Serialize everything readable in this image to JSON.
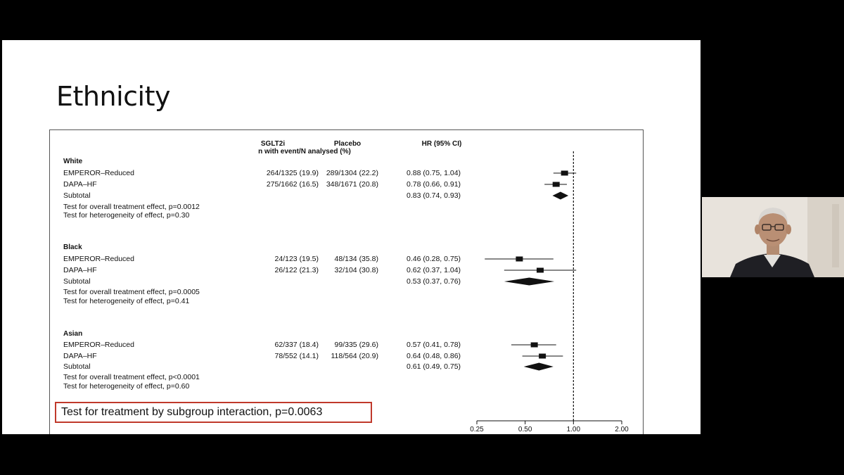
{
  "slide": {
    "title": "Ethnicity"
  },
  "figure": {
    "headers": {
      "sglt2i": "SGLT2i",
      "placebo": "Placebo",
      "n_event": "n with event/N analysed (%)",
      "hr": "HR (95% CI)"
    },
    "groups": [
      {
        "name": "White",
        "rows": [
          {
            "study": "EMPEROR–Reduced",
            "sglt2i": "264/1325 (19.9)",
            "placebo": "289/1304 (22.2)",
            "hr_text": "0.88 (0.75, 1.04)",
            "hr": 0.88,
            "lo": 0.75,
            "hi": 1.04
          },
          {
            "study": "DAPA–HF",
            "sglt2i": "275/1662 (16.5)",
            "placebo": "348/1671 (20.8)",
            "hr_text": "0.78 (0.66, 0.91)",
            "hr": 0.78,
            "lo": 0.66,
            "hi": 0.91
          }
        ],
        "subtotal": {
          "label": "Subtotal",
          "hr_text": "0.83 (0.74, 0.93)",
          "hr": 0.83,
          "lo": 0.74,
          "hi": 0.93
        },
        "overall_test": "Test for overall treatment effect, p=0.0012",
        "heterogeneity_test": "Test for heterogeneity of effect, p=0.30"
      },
      {
        "name": "Black",
        "rows": [
          {
            "study": "EMPEROR–Reduced",
            "sglt2i": "24/123 (19.5)",
            "placebo": "48/134 (35.8)",
            "hr_text": "0.46 (0.28, 0.75)",
            "hr": 0.46,
            "lo": 0.28,
            "hi": 0.75
          },
          {
            "study": "DAPA–HF",
            "sglt2i": "26/122 (21.3)",
            "placebo": "32/104 (30.8)",
            "hr_text": "0.62 (0.37, 1.04)",
            "hr": 0.62,
            "lo": 0.37,
            "hi": 1.04
          }
        ],
        "subtotal": {
          "label": "Subtotal",
          "hr_text": "0.53 (0.37, 0.76)",
          "hr": 0.53,
          "lo": 0.37,
          "hi": 0.76
        },
        "overall_test": "Test for overall treatment effect, p=0.0005",
        "heterogeneity_test": "Test for heterogeneity of effect, p=0.41"
      },
      {
        "name": "Asian",
        "rows": [
          {
            "study": "EMPEROR–Reduced",
            "sglt2i": "62/337 (18.4)",
            "placebo": "99/335 (29.6)",
            "hr_text": "0.57 (0.41, 0.78)",
            "hr": 0.57,
            "lo": 0.41,
            "hi": 0.78
          },
          {
            "study": "DAPA–HF",
            "sglt2i": "78/552 (14.1)",
            "placebo": "118/564 (20.9)",
            "hr_text": "0.64 (0.48, 0.86)",
            "hr": 0.64,
            "lo": 0.48,
            "hi": 0.86
          }
        ],
        "subtotal": {
          "label": "Subtotal",
          "hr_text": "0.61 (0.49, 0.75)",
          "hr": 0.61,
          "lo": 0.49,
          "hi": 0.75
        },
        "overall_test": "Test for overall treatment effect, p<0.0001",
        "heterogeneity_test": "Test for heterogeneity of effect, p=0.60"
      }
    ],
    "interaction_test": "Test for treatment by subgroup interaction, p=0.0063",
    "highlight_color": "#c0392b"
  },
  "chart_data": {
    "type": "forest",
    "x_scale": "log",
    "xlim": [
      0.25,
      2.0
    ],
    "reference_line": 1.0,
    "tick_labels": [
      "0.25",
      "0.50",
      "1.00",
      "2.00"
    ],
    "ticks": [
      0.25,
      0.5,
      1.0,
      2.0
    ]
  },
  "webcam": {
    "icon": "person-avatar-icon"
  }
}
